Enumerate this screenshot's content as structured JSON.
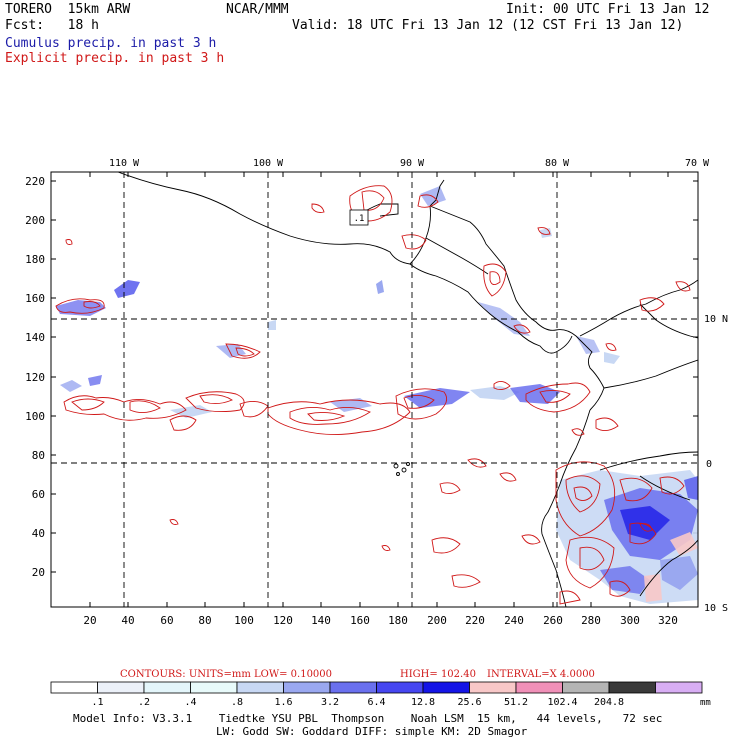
{
  "header": {
    "model": "TORERO  15km ARW",
    "org": "NCAR/MMM",
    "init": "Init: 00 UTC Fri 13 Jan 12",
    "fcst": "Fcst:   18 h",
    "valid": "Valid: 18 UTC Fri 13 Jan 12 (12 CST Fri 13 Jan 12)",
    "legend_cumulus": "Cumulus precip. in past 3 h",
    "legend_explicit": "Explicit precip. in past 3 h"
  },
  "colors": {
    "cumulus": "#1c1ca8",
    "explicit": "#d01818",
    "coast": "#000000"
  },
  "map": {
    "top_lon_labels": [
      "110 W",
      "100 W",
      "90 W",
      "80 W",
      "70 W"
    ],
    "right_lat_labels": [
      "10 N",
      "0",
      "10 S"
    ],
    "y_ticks": [
      "220",
      "200",
      "180",
      "160",
      "140",
      "120",
      "100",
      "80",
      "60",
      "40",
      "20"
    ],
    "x_ticks": [
      "20",
      "40",
      "60",
      "80",
      "100",
      "120",
      "140",
      "160",
      "180",
      "200",
      "220",
      "240",
      "260",
      "280",
      "300",
      "320"
    ],
    "box_label": ".1"
  },
  "contour_info": {
    "contours": "CONTOURS:  UNITS=mm  LOW= 0.10000",
    "high": "HIGH=  102.40",
    "interval": "INTERVAL=X  4.0000"
  },
  "colorbar": {
    "unit": "mm",
    "colors": [
      "#ffffff",
      "#ecf1f9",
      "#e4f6fb",
      "#e8fafa",
      "#c8d8f4",
      "#9aa8f0",
      "#6a70ee",
      "#4646f0",
      "#1414e6",
      "#f8c8c8",
      "#f090b8",
      "#b4b4b4",
      "#3a3a3a",
      "#d8aef4"
    ],
    "labels": [
      ".1",
      ".2",
      ".4",
      ".8",
      "1.6",
      "3.2",
      "6.4",
      "12.8",
      "25.6",
      "51.2",
      "102.4",
      "204.8"
    ]
  },
  "footer": {
    "line1": "Model Info: V3.3.1    Tiedtke YSU PBL  Thompson    Noah LSM  15 km,   44 levels,   72 sec",
    "line2": "LW: Godd SW: Goddard DIFF: simple KM: 2D Smagor"
  }
}
